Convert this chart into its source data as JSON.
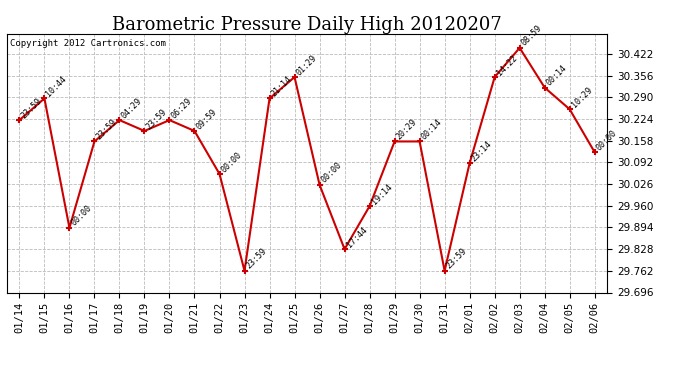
{
  "title": "Barometric Pressure Daily High 20120207",
  "copyright": "Copyright 2012 Cartronics.com",
  "x_labels": [
    "01/14",
    "01/15",
    "01/16",
    "01/17",
    "01/18",
    "01/19",
    "01/20",
    "01/21",
    "01/22",
    "01/23",
    "01/24",
    "01/25",
    "01/26",
    "01/27",
    "01/28",
    "01/29",
    "01/30",
    "01/31",
    "02/01",
    "02/02",
    "02/03",
    "02/04",
    "02/05",
    "02/06"
  ],
  "y_values": [
    30.221,
    30.287,
    29.893,
    30.156,
    30.221,
    30.188,
    30.221,
    30.188,
    30.057,
    29.762,
    30.287,
    30.352,
    30.024,
    29.828,
    29.959,
    30.156,
    30.156,
    29.762,
    30.09,
    30.352,
    30.441,
    30.32,
    30.254,
    30.123
  ],
  "point_labels": [
    "23:59",
    "10:44",
    "00:00",
    "23:59",
    "04:29",
    "23:59",
    "06:29",
    "09:59",
    "00:00",
    "23:59",
    "21:14",
    "01:29",
    "00:00",
    "17:44",
    "19:14",
    "20:29",
    "00:14",
    "23:59",
    "23:14",
    "14:22",
    "08:59",
    "00:14",
    "10:29",
    "00:00"
  ],
  "line_color": "#cc0000",
  "marker_color": "#cc0000",
  "bg_color": "#ffffff",
  "grid_color": "#bbbbbb",
  "title_fontsize": 13,
  "tick_fontsize": 7.5,
  "ylim_min": 29.696,
  "ylim_max": 30.484,
  "ytick_step": 0.066
}
